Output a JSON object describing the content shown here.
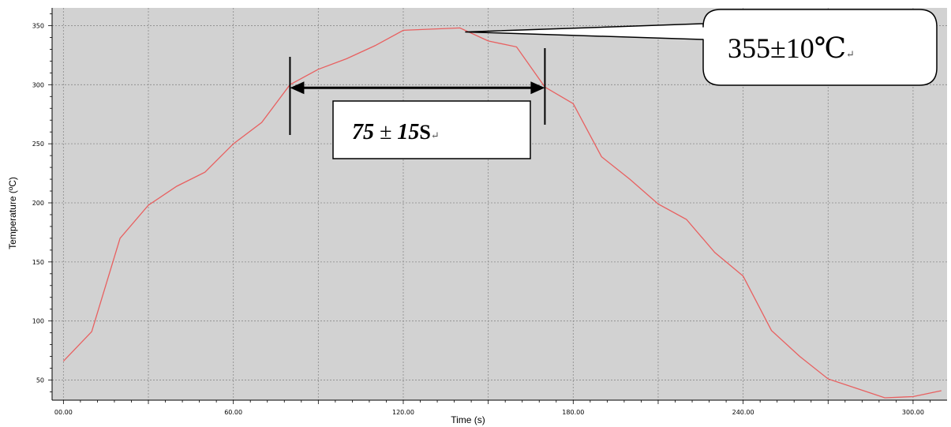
{
  "chart_data": {
    "type": "line",
    "xlabel": "Time (s)",
    "ylabel": "Temperature (ºC)",
    "xlim": [
      -4,
      312
    ],
    "ylim": [
      33,
      365
    ],
    "xticks": [
      0,
      60,
      120,
      180,
      240,
      300
    ],
    "xtick_labels": [
      "00.00",
      "60.00",
      "120.00",
      "180.00",
      "240.00",
      "300.00"
    ],
    "yticks": [
      50,
      100,
      150,
      200,
      250,
      300,
      350
    ],
    "ytick_labels": [
      "50",
      "100",
      "150",
      "200",
      "250",
      "300",
      "350"
    ],
    "grid": true,
    "colors": {
      "plot_bg": "#d2d2d2",
      "line": "#e86060",
      "grid": "#8a8a8a"
    },
    "series": [
      {
        "x": [
          0,
          10,
          20,
          30,
          40,
          50,
          60,
          70,
          80,
          90,
          100,
          110,
          120,
          130,
          140,
          150,
          160,
          170,
          180,
          190,
          200,
          210,
          220,
          230,
          240,
          250,
          260,
          270,
          280,
          290,
          300,
          310
        ],
        "y": [
          66,
          91,
          170,
          198,
          214,
          226,
          250,
          268,
          300,
          313,
          322,
          333,
          346,
          347,
          348,
          337,
          332,
          298,
          284,
          239,
          220,
          199,
          186,
          158,
          138,
          92,
          70,
          51,
          43,
          35,
          36,
          41
        ]
      }
    ],
    "annotations": {
      "peak_callout": {
        "number": "355",
        "pm": "±",
        "value": "10",
        "unit": "℃",
        "mark": "↵",
        "target": [
          142,
          348
        ]
      },
      "duration": {
        "number": "75",
        "pm": "±",
        "value": "15",
        "unit": "S",
        "mark": "↵",
        "x_start": 80,
        "x_end": 170,
        "y": 300
      }
    }
  }
}
